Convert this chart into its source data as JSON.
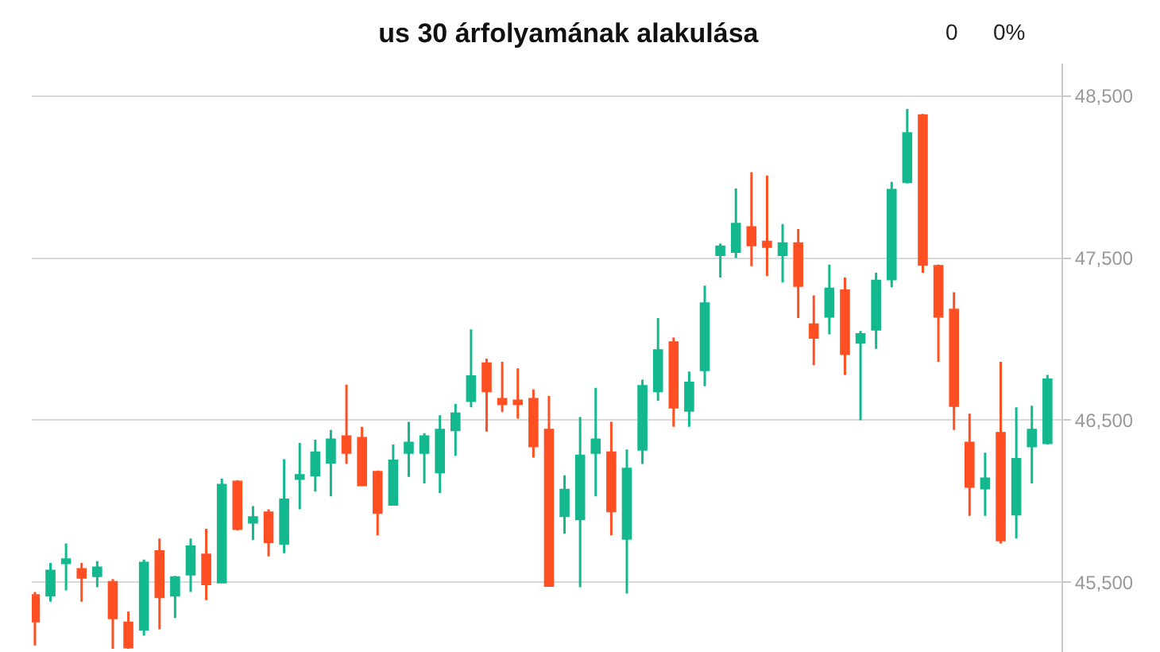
{
  "chart_data": {
    "type": "candlestick",
    "title": "us 30 árfolyamának alakulása",
    "annotations": [
      "0",
      "0%"
    ],
    "categories": [
      null,
      null,
      null,
      null,
      null,
      null,
      null,
      null,
      null,
      null,
      null,
      null,
      null,
      null,
      null,
      null,
      null,
      null,
      null,
      null,
      null,
      null,
      null,
      null,
      null,
      null,
      null,
      null,
      null,
      null,
      null,
      null,
      null,
      null,
      null,
      null,
      null,
      null,
      null,
      null,
      null,
      null,
      null,
      null,
      null,
      null,
      null,
      null,
      null,
      null,
      null,
      null,
      null,
      null,
      null,
      null,
      null,
      null,
      null,
      null,
      null,
      null,
      null,
      null,
      null,
      null
    ],
    "ohlc": [
      [
        45420,
        45440,
        45110,
        45260
      ],
      [
        45420,
        45620,
        45380,
        45570
      ],
      [
        45620,
        45740,
        45450,
        45640
      ],
      [
        45580,
        45620,
        45380,
        45530
      ],
      [
        45540,
        45630,
        45470,
        45590
      ],
      [
        45500,
        45520,
        45090,
        45280
      ],
      [
        45250,
        45320,
        45090,
        45100
      ],
      [
        45210,
        45640,
        45170,
        45620
      ],
      [
        45690,
        45770,
        45210,
        45410
      ],
      [
        45420,
        45540,
        45280,
        45530
      ],
      [
        45550,
        45770,
        45440,
        45720
      ],
      [
        45670,
        45830,
        45390,
        45490
      ],
      [
        45500,
        46140,
        45500,
        46100
      ],
      [
        46120,
        46130,
        45820,
        45830
      ],
      [
        45870,
        45970,
        45760,
        45900
      ],
      [
        45930,
        45950,
        45660,
        45750
      ],
      [
        45740,
        46260,
        45680,
        46010
      ],
      [
        46140,
        46360,
        45950,
        46160
      ],
      [
        46160,
        46380,
        46060,
        46300
      ],
      [
        46240,
        46440,
        46030,
        46380
      ],
      [
        46400,
        46720,
        46230,
        46300
      ],
      [
        46390,
        46460,
        46100,
        46100
      ],
      [
        46180,
        46190,
        45790,
        45930
      ],
      [
        45980,
        46350,
        45980,
        46250
      ],
      [
        46300,
        46490,
        46150,
        46360
      ],
      [
        46300,
        46420,
        46110,
        46400
      ],
      [
        46180,
        46530,
        46050,
        46440
      ],
      [
        46440,
        46600,
        46280,
        46540
      ],
      [
        46620,
        47060,
        46580,
        46770
      ],
      [
        46850,
        46880,
        46430,
        46680
      ],
      [
        46630,
        46860,
        46550,
        46600
      ],
      [
        46620,
        46820,
        46510,
        46600
      ],
      [
        46630,
        46690,
        46270,
        46340
      ],
      [
        46440,
        46650,
        45480,
        45480
      ],
      [
        45910,
        46160,
        45800,
        46070
      ],
      [
        45890,
        46520,
        45470,
        46280
      ],
      [
        46300,
        46700,
        46030,
        46380
      ],
      [
        46300,
        46490,
        45790,
        45940
      ],
      [
        45770,
        46320,
        45430,
        46200
      ],
      [
        46320,
        46750,
        46230,
        46710
      ],
      [
        46680,
        47130,
        46620,
        46930
      ],
      [
        46980,
        47010,
        46460,
        46580
      ],
      [
        46560,
        46800,
        46460,
        46730
      ],
      [
        46810,
        47330,
        46710,
        47220
      ],
      [
        47520,
        47590,
        47380,
        47570
      ],
      [
        47540,
        47930,
        47500,
        47710
      ],
      [
        47690,
        48030,
        47450,
        47580
      ],
      [
        47600,
        48010,
        47390,
        47570
      ],
      [
        47520,
        47710,
        47350,
        47590
      ],
      [
        47590,
        47680,
        47130,
        47330
      ],
      [
        47090,
        47270,
        46840,
        47010
      ],
      [
        47140,
        47460,
        47030,
        47310
      ],
      [
        47300,
        47380,
        46780,
        46910
      ],
      [
        46980,
        47050,
        46500,
        47030
      ],
      [
        47060,
        47410,
        46940,
        47360
      ],
      [
        47370,
        47970,
        47320,
        47920
      ],
      [
        47970,
        48420,
        47960,
        48270
      ],
      [
        48380,
        48390,
        47410,
        47460
      ],
      [
        47450,
        47460,
        46860,
        47140
      ],
      [
        47180,
        47290,
        46440,
        46590
      ],
      [
        46360,
        46540,
        45910,
        46090
      ],
      [
        46080,
        46300,
        45910,
        46140
      ],
      [
        46420,
        46860,
        45740,
        45760
      ],
      [
        45920,
        46580,
        45770,
        46260
      ],
      [
        46340,
        46590,
        46110,
        46440
      ],
      [
        46360,
        46780,
        46350,
        46750
      ]
    ],
    "colors": [
      "#ff4f23",
      "#14b88f",
      "#14b88f",
      "#ff4f23",
      "#14b88f",
      "#ff4f23",
      "#ff4f23",
      "#14b88f",
      "#ff4f23",
      "#14b88f",
      "#14b88f",
      "#ff4f23",
      "#14b88f",
      "#ff4f23",
      "#14b88f",
      "#ff4f23",
      "#14b88f",
      "#14b88f",
      "#14b88f",
      "#14b88f",
      "#ff4f23",
      "#ff4f23",
      "#ff4f23",
      "#14b88f",
      "#14b88f",
      "#14b88f",
      "#14b88f",
      "#14b88f",
      "#14b88f",
      "#ff4f23",
      "#ff4f23",
      "#ff4f23",
      "#ff4f23",
      "#ff4f23",
      "#14b88f",
      "#14b88f",
      "#14b88f",
      "#ff4f23",
      "#14b88f",
      "#14b88f",
      "#14b88f",
      "#ff4f23",
      "#14b88f",
      "#14b88f",
      "#14b88f",
      "#14b88f",
      "#ff4f23",
      "#ff4f23",
      "#14b88f",
      "#ff4f23",
      "#ff4f23",
      "#14b88f",
      "#ff4f23",
      "#14b88f",
      "#14b88f",
      "#14b88f",
      "#14b88f",
      "#ff4f23",
      "#ff4f23",
      "#ff4f23",
      "#ff4f23",
      "#14b88f",
      "#ff4f23",
      "#14b88f",
      "#14b88f",
      "#14b88f"
    ],
    "ylim": [
      45070,
      48700
    ],
    "yticks": [
      {
        "value": 45500,
        "label": "45,500"
      },
      {
        "value": 46500,
        "label": "46,500"
      },
      {
        "value": 47500,
        "label": "47,500"
      },
      {
        "value": 48500,
        "label": "48,500"
      }
    ],
    "grid": "y",
    "tick_labels": "y"
  }
}
